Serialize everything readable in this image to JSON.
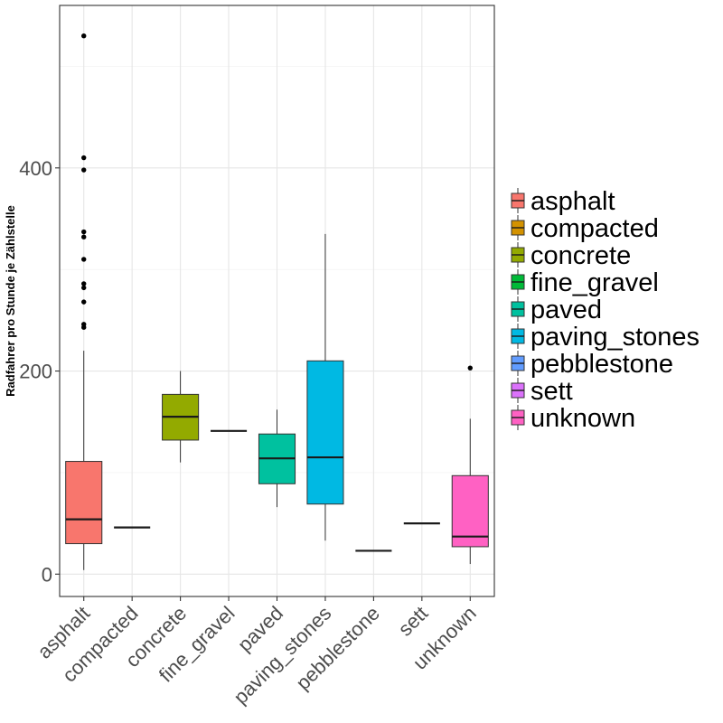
{
  "chart_data": {
    "type": "boxplot",
    "title": "",
    "xlabel": "",
    "ylabel": "Radfahrer pro Stunde je Zählstelle",
    "ylim": [
      -22,
      560
    ],
    "yticks": [
      0,
      200,
      400
    ],
    "grid": true,
    "legend_position": "right",
    "categories": [
      "asphalt",
      "compacted",
      "concrete",
      "fine_gravel",
      "paved",
      "paving_stones",
      "pebblestone",
      "sett",
      "unknown"
    ],
    "colors": [
      "#F8766D",
      "#D39200",
      "#93AA00",
      "#00BA38",
      "#00C19F",
      "#00B9E3",
      "#619CFF",
      "#DB72FB",
      "#FF61C3"
    ],
    "boxes": [
      {
        "name": "asphalt",
        "min": 4,
        "q1": 30,
        "median": 54,
        "q3": 111,
        "max": 220,
        "outliers": [
          243,
          246,
          268,
          282,
          286,
          310,
          332,
          337,
          398,
          410,
          530
        ]
      },
      {
        "name": "compacted",
        "min": 46,
        "q1": 46,
        "median": 46,
        "q3": 46,
        "max": 46,
        "outliers": []
      },
      {
        "name": "concrete",
        "min": 110,
        "q1": 132,
        "median": 155,
        "q3": 177,
        "max": 200,
        "outliers": []
      },
      {
        "name": "fine_gravel",
        "min": 141,
        "q1": 141,
        "median": 141,
        "q3": 141,
        "max": 141,
        "outliers": []
      },
      {
        "name": "paved",
        "min": 66,
        "q1": 89,
        "median": 114,
        "q3": 138,
        "max": 162,
        "outliers": []
      },
      {
        "name": "paving_stones",
        "min": 33,
        "q1": 69,
        "median": 115,
        "q3": 210,
        "max": 335,
        "outliers": []
      },
      {
        "name": "pebblestone",
        "min": 23,
        "q1": 23,
        "median": 23,
        "q3": 23,
        "max": 23,
        "outliers": []
      },
      {
        "name": "sett",
        "min": 50,
        "q1": 50,
        "median": 50,
        "q3": 50,
        "max": 50,
        "outliers": []
      },
      {
        "name": "unknown",
        "min": 10,
        "q1": 27,
        "median": 37,
        "q3": 97,
        "max": 153,
        "outliers": [
          203
        ]
      }
    ]
  }
}
